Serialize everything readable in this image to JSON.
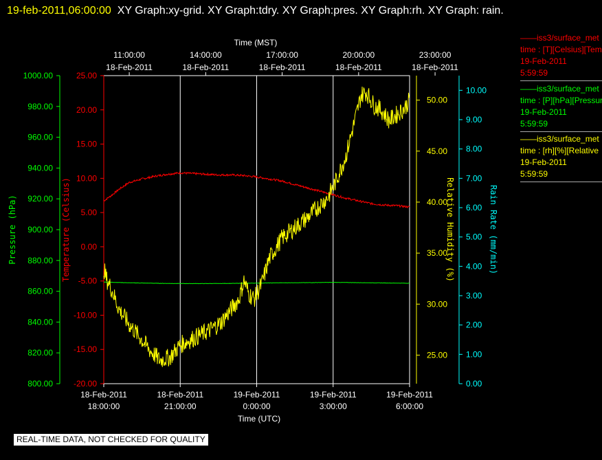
{
  "header": {
    "timestamp": "19-feb-2011,06:00:00",
    "title_text": "XY Graph:xy-grid.  XY Graph:tdry.  XY Graph:pres.  XY Graph:rh.  XY Graph: rain."
  },
  "banner": "REAL-TIME DATA, NOT CHECKED FOR QUALITY",
  "legend": [
    {
      "line1": "iss3/surface_met",
      "line2": "time : [T][Celsius][Temp",
      "line3": "19-Feb-2011",
      "line4": "5:59:59",
      "color": "#ff0000"
    },
    {
      "line1": "iss3/surface_met",
      "line2": "time : [P][hPa][Pressure",
      "line3": "19-Feb-2011",
      "line4": "5:59:59",
      "color": "#00ff00"
    },
    {
      "line1": "iss3/surface_met",
      "line2": "time : [rh][%][Relative",
      "line3": "19-Feb-2011",
      "line4": "5:59:59",
      "color": "#ffff00"
    }
  ],
  "chart_data": {
    "type": "line",
    "top_axis_title": "Time (MST)",
    "bottom_axis_title": "Time (UTC)",
    "x_range_utc_hours": [
      0,
      12
    ],
    "top_ticks": [
      {
        "hour": 1,
        "time": "11:00:00",
        "date": "18-Feb-2011"
      },
      {
        "hour": 4,
        "time": "14:00:00",
        "date": "18-Feb-2011"
      },
      {
        "hour": 7,
        "time": "17:00:00",
        "date": "18-Feb-2011"
      },
      {
        "hour": 10,
        "time": "20:00:00",
        "date": "18-Feb-2011"
      },
      {
        "hour": 13,
        "time": "23:00:00",
        "date": "18-Feb-2011"
      }
    ],
    "bottom_ticks": [
      {
        "hour": 0,
        "date": "18-Feb-2011",
        "time": "18:00:00"
      },
      {
        "hour": 3,
        "date": "18-Feb-2011",
        "time": "21:00:00"
      },
      {
        "hour": 6,
        "date": "19-Feb-2011",
        "time": "0:00:00"
      },
      {
        "hour": 9,
        "date": "19-Feb-2011",
        "time": "3:00:00"
      },
      {
        "hour": 12,
        "date": "19-Feb-2011",
        "time": "6:00:00"
      }
    ],
    "axes": {
      "pressure": {
        "label": "Pressure (hPa)",
        "color": "#00ff00",
        "range": [
          800,
          1000
        ],
        "ticks": [
          "800.00",
          "820.00",
          "840.00",
          "860.00",
          "880.00",
          "900.00",
          "920.00",
          "940.00",
          "960.00",
          "980.00",
          "1000.00"
        ]
      },
      "temperature": {
        "label": "Temperature (Celsius)",
        "color": "#ff0000",
        "range": [
          -20,
          25
        ],
        "ticks": [
          "-20.00",
          "-15.00",
          "-10.00",
          "-5.00",
          "0.00",
          "5.00",
          "10.00",
          "15.00",
          "20.00",
          "25.00"
        ]
      },
      "rh": {
        "label": "Relative Humidity (%)",
        "color": "#ffff00",
        "range": [
          22.2,
          52.4
        ],
        "ticks": [
          "25.00",
          "30.00",
          "35.00",
          "40.00",
          "45.00",
          "50.00"
        ]
      },
      "rain": {
        "label": "Rain Rate (mm/min)",
        "color": "#00ffff",
        "range": [
          0,
          10.5
        ],
        "ticks": [
          "0.00",
          "1.00",
          "2.00",
          "3.00",
          "4.00",
          "5.00",
          "6.00",
          "7.00",
          "8.00",
          "9.00",
          "10.00"
        ]
      }
    },
    "series": [
      {
        "name": "iss3/surface_met time : [T][Celsius]",
        "axis": "temperature",
        "color": "#ff0000",
        "noise": 0.15,
        "x": [
          0,
          0.3,
          0.6,
          1.0,
          1.5,
          2.0,
          2.5,
          3.0,
          3.5,
          4.0,
          4.5,
          5.0,
          5.5,
          6.0,
          6.5,
          7.0,
          7.5,
          8.0,
          8.5,
          9.0,
          9.5,
          10.0,
          10.5,
          11.0,
          11.5,
          12.0
        ],
        "y": [
          6.7,
          7.5,
          8.4,
          9.4,
          9.9,
          10.3,
          10.6,
          10.8,
          10.7,
          10.6,
          10.5,
          10.5,
          10.4,
          10.2,
          9.9,
          9.6,
          9.1,
          8.6,
          8.1,
          7.6,
          7.1,
          6.7,
          6.3,
          6.1,
          6.0,
          5.8
        ]
      },
      {
        "name": "iss3/surface_met time : [P][hPa]",
        "axis": "pressure",
        "color": "#00ff00",
        "noise": 0.1,
        "x": [
          0,
          1,
          2,
          3,
          4,
          5,
          6,
          7,
          8,
          9,
          10,
          11,
          12
        ],
        "y": [
          866.0,
          865.5,
          865.2,
          865.0,
          865.0,
          865.1,
          865.3,
          865.5,
          865.6,
          865.8,
          865.6,
          865.4,
          865.2
        ]
      },
      {
        "name": "iss3/surface_met time : [rh][%]",
        "axis": "rh",
        "color": "#ffff00",
        "noise": 0.9,
        "x": [
          0,
          0.1,
          0.3,
          0.6,
          1.0,
          1.4,
          1.8,
          2.2,
          2.6,
          3.0,
          3.4,
          3.8,
          4.2,
          4.6,
          5.0,
          5.3,
          5.5,
          5.7,
          5.9,
          6.2,
          6.5,
          7.0,
          7.5,
          8.0,
          8.4,
          8.8,
          9.1,
          9.5,
          9.9,
          10.1,
          10.3,
          10.6,
          10.9,
          11.2,
          11.5,
          11.8,
          12.0
        ],
        "y": [
          33.5,
          32.5,
          31.5,
          29.5,
          28.0,
          26.8,
          25.5,
          24.5,
          24.8,
          26.0,
          26.5,
          27.0,
          27.5,
          28.2,
          29.5,
          30.5,
          32.3,
          31.0,
          30.5,
          32.0,
          34.5,
          36.5,
          37.5,
          38.5,
          39.5,
          40.5,
          42.0,
          44.5,
          48.5,
          50.5,
          50.8,
          49.5,
          49.0,
          48.0,
          48.6,
          49.2,
          50.0
        ]
      }
    ]
  }
}
